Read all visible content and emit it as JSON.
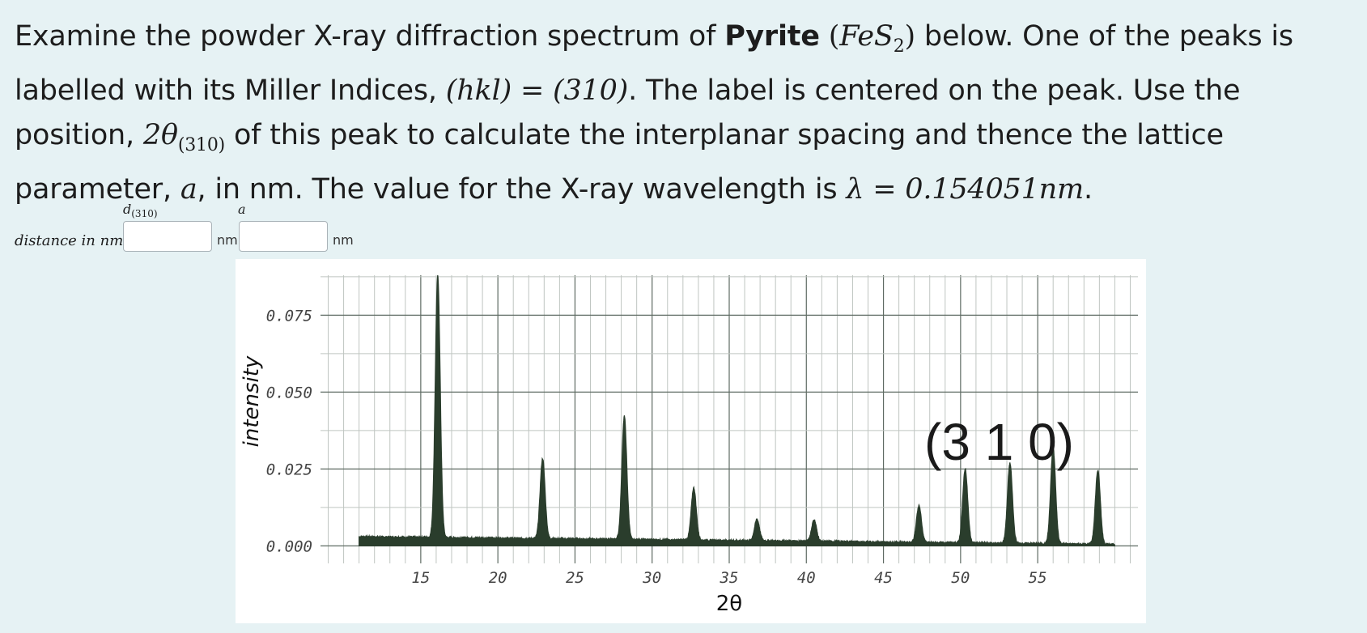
{
  "question": {
    "p1": "Examine the powder X-ray diffraction spectrum of ",
    "mineral": "Pyrite",
    "formula_open": " (",
    "formula_Fe": "FeS",
    "formula_sub": "2",
    "formula_close": ")",
    "p2": " below. One of the peaks is labelled with its Miller Indices, ",
    "hkl_math": "(hkl) = (310)",
    "p3": ". The label is centered on the peak. Use the position, ",
    "theta_math": "2θ",
    "theta_sub": "(310)",
    "p4": " of this peak to calculate the interplanar spacing and thence the lattice parameter, ",
    "a_math": "a",
    "p5": ", in nm. The value for the X-ray wavelength is ",
    "lambda_math": "λ = 0.154051nm",
    "p6": "."
  },
  "answers": {
    "row_label": "distance in nm",
    "d_head": "d",
    "d_head_sub": "(310)",
    "a_head": "a",
    "unit1": "nm",
    "unit2": "nm",
    "d_value": "",
    "a_value": ""
  },
  "chart_data": {
    "type": "line",
    "title": "",
    "xlabel": "2θ",
    "ylabel": "intensity",
    "xlim": [
      8.5,
      61.5
    ],
    "ylim": [
      -0.002,
      0.088
    ],
    "xticks": [
      15,
      20,
      25,
      30,
      35,
      40,
      45,
      50,
      55
    ],
    "yticks": [
      0.0,
      0.025,
      0.05,
      0.075
    ],
    "ytick_labels": [
      "0.000",
      "0.025",
      "0.050",
      "0.075"
    ],
    "grid": true,
    "baseline": {
      "x": [
        11,
        60
      ],
      "start": 0.003,
      "end": 0.0005
    },
    "peaks": [
      {
        "x": 16.1,
        "y": 0.085
      },
      {
        "x": 22.9,
        "y": 0.026
      },
      {
        "x": 28.2,
        "y": 0.04
      },
      {
        "x": 32.7,
        "y": 0.017
      },
      {
        "x": 36.8,
        "y": 0.007
      },
      {
        "x": 40.5,
        "y": 0.007
      },
      {
        "x": 47.3,
        "y": 0.012
      },
      {
        "x": 50.3,
        "y": 0.024
      },
      {
        "x": 53.2,
        "y": 0.026
      },
      {
        "x": 56.0,
        "y": 0.031
      },
      {
        "x": 58.9,
        "y": 0.024
      }
    ],
    "annotation": {
      "text": "(3 1 0)",
      "x": 52.5,
      "y": 0.028
    },
    "color": "#2a3d2c"
  }
}
